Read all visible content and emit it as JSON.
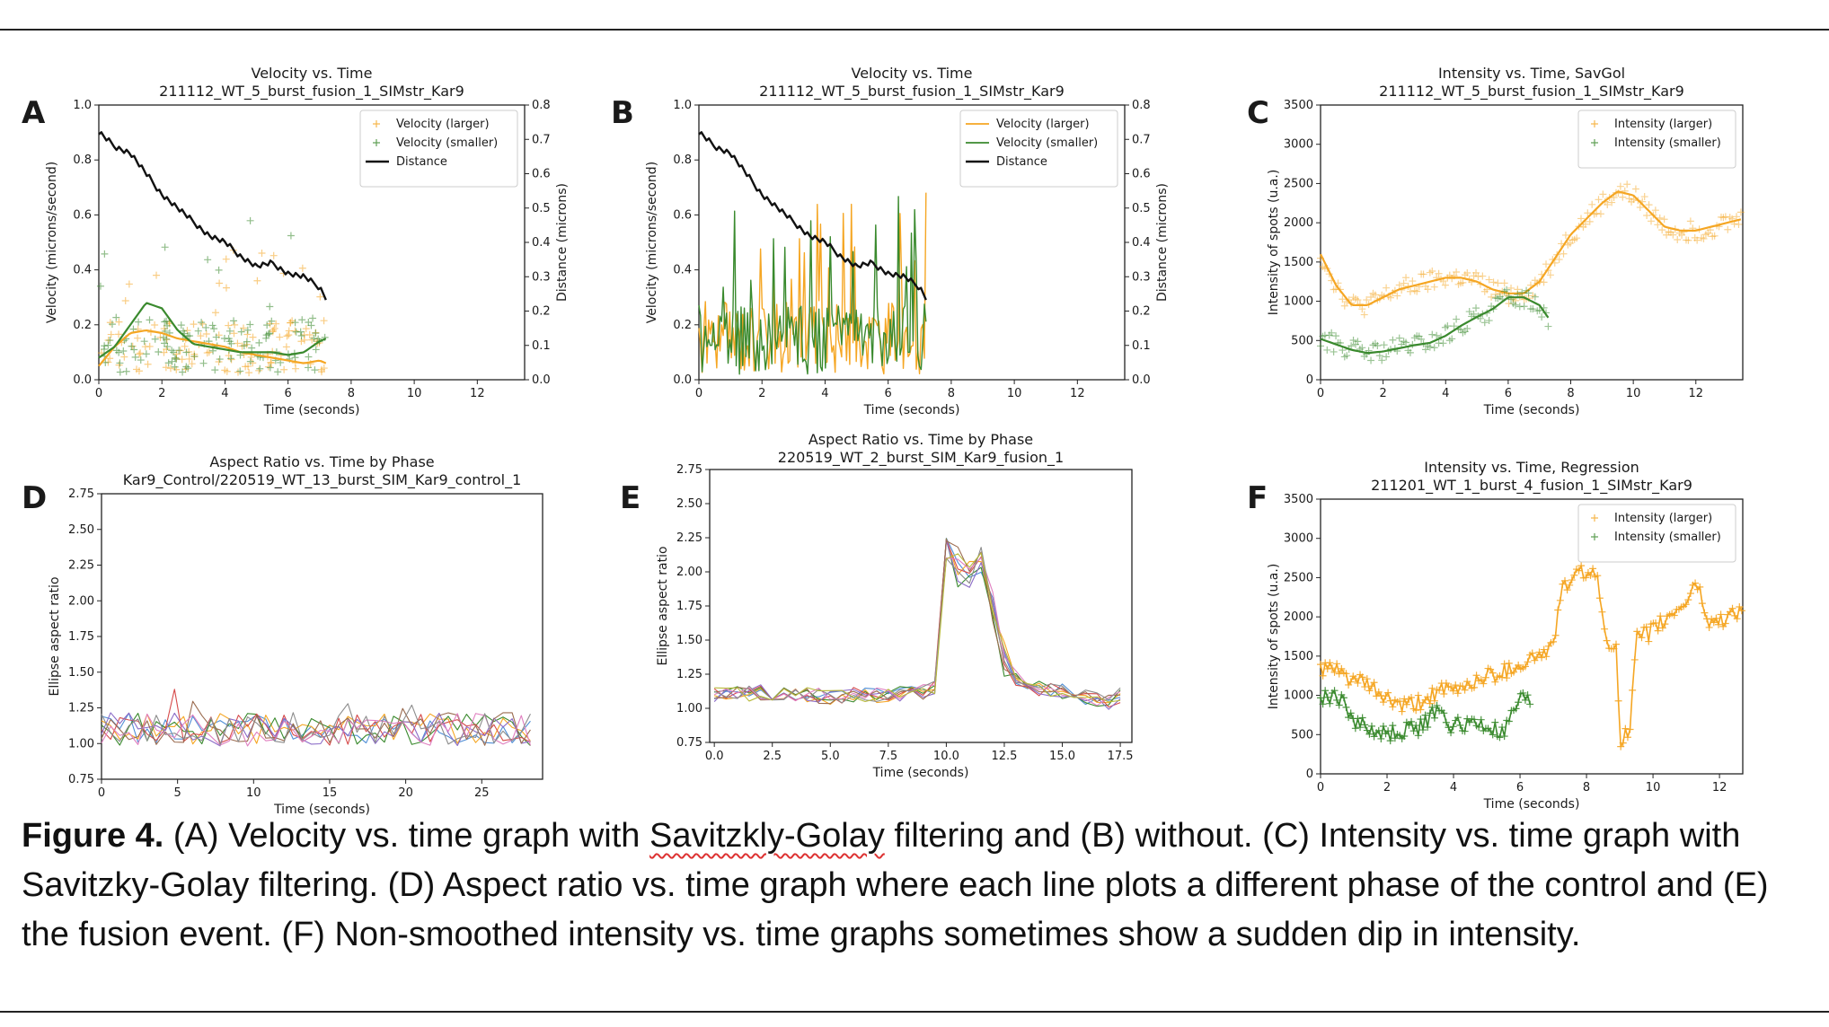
{
  "caption": {
    "lead": "Figure 4.",
    "t1": " (A) Velocity vs. time graph with ",
    "t2": "Savitzkly-Golay",
    "t3": " filtering and (B) without. (C) Intensity vs. time graph with Savitzky-Golay filtering. (D) Aspect ratio vs. time graph where each line plots a different phase of the control and (E) the fusion event. (F) Non-smoothed intensity vs. time graphs sometimes show a sudden dip in intensity."
  },
  "colors": {
    "orange": "#f5a623",
    "green": "#3a8a2e",
    "black": "#111111",
    "phase": [
      "#4f8ed6",
      "#f5a623",
      "#3a8a2e",
      "#d64b4b",
      "#8b6bc7",
      "#9a6b4f",
      "#e07fc0",
      "#8c8c8c",
      "#b7b93a",
      "#2ab7c7"
    ]
  },
  "chart_data": [
    {
      "panel": "A",
      "type": "scatter",
      "title": "Velocity vs. Time",
      "subtitle": "211112_WT_5_burst_fusion_1_SIMstr_Kar9",
      "xlabel": "Time (seconds)",
      "ylabel": "Velocity (microns/second)",
      "ylabel2": "Distance (microns)",
      "xlim": [
        0,
        13.5
      ],
      "ylim": [
        0,
        1.0
      ],
      "y2lim": [
        0,
        0.8
      ],
      "xticks": [
        "0",
        "2",
        "4",
        "6",
        "8",
        "10",
        "12"
      ],
      "yticks": [
        "0.0",
        "0.2",
        "0.4",
        "0.6",
        "0.8",
        "1.0"
      ],
      "y2ticks": [
        "0.0",
        "0.1",
        "0.2",
        "0.3",
        "0.4",
        "0.5",
        "0.6",
        "0.7",
        "0.8"
      ],
      "legend_position": "top-right",
      "legend": [
        "Velocity (larger)",
        "Velocity (smaller)",
        "Distance"
      ],
      "series": [
        {
          "name": "Velocity (larger)",
          "style": "markers",
          "seed": 11,
          "x_range": [
            0,
            7.2
          ],
          "level": 0.16,
          "spread": 0.2
        },
        {
          "name": "Velocity (smaller)",
          "style": "markers",
          "seed": 23,
          "x_range": [
            0,
            7.2
          ],
          "level": 0.17,
          "spread": 0.26
        },
        {
          "name": "Velocity (larger) smoothed",
          "style": "line",
          "x": [
            0,
            0.5,
            1,
            1.5,
            2,
            2.5,
            3,
            3.5,
            4,
            4.5,
            5,
            5.5,
            6,
            6.5,
            7,
            7.2
          ],
          "y": [
            0.05,
            0.12,
            0.17,
            0.18,
            0.17,
            0.15,
            0.14,
            0.13,
            0.12,
            0.1,
            0.09,
            0.08,
            0.07,
            0.06,
            0.07,
            0.06
          ]
        },
        {
          "name": "Velocity (smaller) smoothed",
          "style": "line",
          "x": [
            0,
            0.5,
            1,
            1.5,
            2,
            2.5,
            3,
            3.5,
            4,
            4.5,
            5,
            5.5,
            6,
            6.5,
            7,
            7.2
          ],
          "y": [
            0.08,
            0.12,
            0.2,
            0.28,
            0.26,
            0.18,
            0.13,
            0.12,
            0.11,
            0.1,
            0.1,
            0.1,
            0.09,
            0.1,
            0.14,
            0.15
          ]
        },
        {
          "name": "Distance",
          "style": "line",
          "axis": "right",
          "x": [
            0,
            0.5,
            1,
            1.5,
            2,
            2.5,
            3,
            3.5,
            4,
            4.5,
            5,
            5.5,
            6,
            6.5,
            7,
            7.2
          ],
          "y": [
            0.72,
            0.68,
            0.66,
            0.6,
            0.54,
            0.5,
            0.46,
            0.42,
            0.4,
            0.36,
            0.33,
            0.34,
            0.31,
            0.3,
            0.27,
            0.24
          ]
        }
      ]
    },
    {
      "panel": "B",
      "type": "line",
      "title": "Velocity vs. Time",
      "subtitle": "211112_WT_5_burst_fusion_1_SIMstr_Kar9",
      "xlabel": "Time (seconds)",
      "ylabel": "Velocity (microns/second)",
      "ylabel2": "Distance (microns)",
      "xlim": [
        0,
        13.5
      ],
      "ylim": [
        0,
        1.0
      ],
      "y2lim": [
        0,
        0.8
      ],
      "xticks": [
        "0",
        "2",
        "4",
        "6",
        "8",
        "10",
        "12"
      ],
      "yticks": [
        "0.0",
        "0.2",
        "0.4",
        "0.6",
        "0.8",
        "1.0"
      ],
      "y2ticks": [
        "0.0",
        "0.1",
        "0.2",
        "0.3",
        "0.4",
        "0.5",
        "0.6",
        "0.7",
        "0.8"
      ],
      "legend_position": "top-right",
      "legend": [
        "Velocity (larger)",
        "Velocity (smaller)",
        "Distance"
      ],
      "series": [
        {
          "name": "Velocity (larger)",
          "style": "noisy",
          "seed": 31,
          "x_range": [
            0,
            7.2
          ],
          "level": 0.15,
          "spread": 0.45
        },
        {
          "name": "Velocity (smaller)",
          "style": "noisy",
          "seed": 47,
          "x_range": [
            0,
            7.2
          ],
          "level": 0.14,
          "spread": 0.5
        },
        {
          "name": "Distance",
          "style": "line",
          "axis": "right",
          "x": [
            0,
            0.5,
            1,
            1.5,
            2,
            2.5,
            3,
            3.5,
            4,
            4.5,
            5,
            5.5,
            6,
            6.5,
            7,
            7.2
          ],
          "y": [
            0.72,
            0.68,
            0.66,
            0.6,
            0.54,
            0.5,
            0.46,
            0.42,
            0.4,
            0.36,
            0.33,
            0.34,
            0.31,
            0.3,
            0.27,
            0.24
          ]
        }
      ]
    },
    {
      "panel": "C",
      "type": "scatter",
      "title": "Intensity vs. Time, SavGol",
      "subtitle": "211112_WT_5_burst_fusion_1_SIMstr_Kar9",
      "xlabel": "Time (seconds)",
      "ylabel": "Intensity of spots (u.a.)",
      "xlim": [
        0,
        13.5
      ],
      "ylim": [
        0,
        3500
      ],
      "xticks": [
        "0",
        "2",
        "4",
        "6",
        "8",
        "10",
        "12"
      ],
      "yticks": [
        "0",
        "500",
        "1000",
        "1500",
        "2000",
        "2500",
        "3000",
        "3500"
      ],
      "legend_position": "top-right",
      "legend": [
        "Intensity (larger)",
        "Intensity (smaller)"
      ],
      "series": [
        {
          "name": "Intensity (larger)",
          "style": "markers+line",
          "x": [
            0,
            0.5,
            1,
            1.5,
            2,
            2.5,
            3,
            3.5,
            4,
            4.5,
            5,
            5.5,
            6,
            6.5,
            7,
            7.5,
            8,
            8.5,
            9,
            9.5,
            10,
            10.5,
            11,
            11.5,
            12,
            12.5,
            13,
            13.5
          ],
          "y": [
            1600,
            1200,
            950,
            950,
            1050,
            1150,
            1200,
            1250,
            1300,
            1300,
            1250,
            1150,
            1100,
            1100,
            1250,
            1550,
            1850,
            2050,
            2250,
            2400,
            2350,
            2150,
            1950,
            1900,
            1900,
            1950,
            2000,
            2050
          ]
        },
        {
          "name": "Intensity (smaller)",
          "style": "markers+line",
          "x": [
            0,
            0.5,
            1,
            1.5,
            2,
            2.5,
            3,
            3.5,
            4,
            4.5,
            5,
            5.5,
            6,
            6.5,
            7,
            7.3
          ],
          "y": [
            520,
            450,
            380,
            340,
            360,
            400,
            440,
            470,
            560,
            690,
            800,
            900,
            1050,
            1050,
            950,
            780
          ]
        }
      ]
    },
    {
      "panel": "D",
      "type": "line",
      "title": "Aspect Ratio vs. Time by Phase",
      "subtitle": "Kar9_Control/220519_WT_13_burst_SIM_Kar9_control_1",
      "xlabel": "Time (seconds)",
      "ylabel": "Ellipse aspect ratio",
      "xlim": [
        0,
        29
      ],
      "ylim": [
        0.75,
        2.75
      ],
      "xticks": [
        "0",
        "5",
        "10",
        "15",
        "20",
        "25"
      ],
      "yticks": [
        "0.75",
        "1.00",
        "1.25",
        "1.50",
        "1.75",
        "2.00",
        "2.25",
        "2.50",
        "2.75"
      ],
      "n_phases": 8,
      "baseline": 1.1,
      "noise": 0.13,
      "seed": 5
    },
    {
      "panel": "E",
      "type": "line",
      "title": "Aspect Ratio vs. Time by Phase",
      "subtitle": "220519_WT_2_burst_SIM_Kar9_fusion_1",
      "xlabel": "Time (seconds)",
      "ylabel": "Ellipse aspect ratio",
      "xlim": [
        -0.2,
        18
      ],
      "ylim": [
        0.75,
        2.75
      ],
      "xticks": [
        "0.0",
        "2.5",
        "5.0",
        "7.5",
        "10.0",
        "12.5",
        "15.0",
        "17.5"
      ],
      "yticks": [
        "0.75",
        "1.00",
        "1.25",
        "1.50",
        "1.75",
        "2.00",
        "2.25",
        "2.50",
        "2.75"
      ],
      "n_phases": 9,
      "seed": 9,
      "profile": {
        "x": [
          0,
          1,
          2,
          3,
          4,
          5,
          6,
          7,
          8,
          9,
          9.5,
          10,
          10.5,
          11,
          11.5,
          12,
          12.5,
          13,
          14,
          15,
          16,
          17,
          17.5
        ],
        "y": [
          1.1,
          1.1,
          1.12,
          1.1,
          1.1,
          1.08,
          1.1,
          1.1,
          1.1,
          1.12,
          1.15,
          2.15,
          2.05,
          1.95,
          2.1,
          1.7,
          1.35,
          1.22,
          1.15,
          1.12,
          1.08,
          1.05,
          1.1
        ]
      }
    },
    {
      "panel": "F",
      "type": "scatter",
      "title": "Intensity vs. Time, Regression",
      "subtitle": "211201_WT_1_burst_4_fusion_1_SIMstr_Kar9",
      "xlabel": "Time (seconds)",
      "ylabel": "Intensity of spots (u.a.)",
      "xlim": [
        0,
        12.7
      ],
      "ylim": [
        0,
        3500
      ],
      "xticks": [
        "0",
        "2",
        "4",
        "6",
        "8",
        "10",
        "12"
      ],
      "yticks": [
        "0",
        "500",
        "1000",
        "1500",
        "2000",
        "2500",
        "3000",
        "3500"
      ],
      "legend_position": "top-right",
      "legend": [
        "Intensity (larger)",
        "Intensity (smaller)"
      ],
      "series": [
        {
          "name": "Intensity (larger)",
          "style": "markers+line",
          "seed": 61,
          "x": [
            0,
            0.5,
            1,
            1.5,
            2,
            2.5,
            3,
            3.5,
            4,
            4.5,
            5,
            5.5,
            6,
            6.5,
            7,
            7.2,
            7.5,
            8,
            8.3,
            8.6,
            8.9,
            9.0,
            9.3,
            9.5,
            9.9,
            10.5,
            11,
            11.3,
            11.7,
            12.2,
            12.7
          ],
          "y": [
            1350,
            1300,
            1200,
            1100,
            950,
            850,
            900,
            1050,
            1050,
            1150,
            1250,
            1300,
            1400,
            1500,
            1600,
            2300,
            2450,
            2600,
            2500,
            1700,
            1650,
            450,
            500,
            1700,
            1800,
            2000,
            2200,
            2450,
            1900,
            2000,
            2100
          ]
        },
        {
          "name": "Intensity (smaller)",
          "style": "markers+line",
          "seed": 73,
          "x": [
            0,
            0.5,
            1,
            1.5,
            2,
            2.5,
            3,
            3.5,
            4,
            4.5,
            5,
            5.5,
            6,
            6.3
          ],
          "y": [
            950,
            1000,
            700,
            550,
            500,
            550,
            600,
            800,
            600,
            650,
            600,
            500,
            950,
            900
          ]
        }
      ]
    }
  ]
}
